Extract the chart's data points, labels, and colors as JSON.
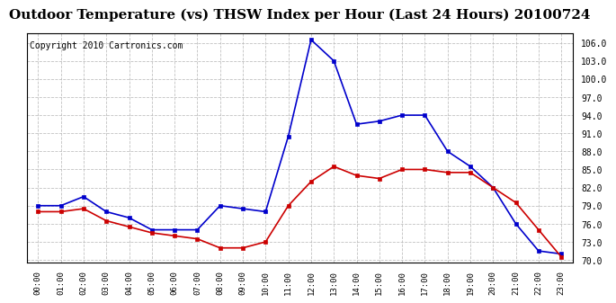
{
  "title": "Outdoor Temperature (vs) THSW Index per Hour (Last 24 Hours) 20100724",
  "copyright": "Copyright 2010 Cartronics.com",
  "hours": [
    "00:00",
    "01:00",
    "02:00",
    "03:00",
    "04:00",
    "05:00",
    "06:00",
    "07:00",
    "08:00",
    "09:00",
    "10:00",
    "11:00",
    "12:00",
    "13:00",
    "14:00",
    "15:00",
    "16:00",
    "17:00",
    "18:00",
    "19:00",
    "20:00",
    "21:00",
    "22:00",
    "23:00"
  ],
  "thsw": [
    79.0,
    79.0,
    80.5,
    78.0,
    77.0,
    75.0,
    75.0,
    75.0,
    79.0,
    78.5,
    78.0,
    90.5,
    106.5,
    103.0,
    92.5,
    93.0,
    94.0,
    94.0,
    88.0,
    85.5,
    82.0,
    76.0,
    71.5,
    71.0
  ],
  "temp": [
    78.0,
    78.0,
    78.5,
    76.5,
    75.5,
    74.5,
    74.0,
    73.5,
    72.0,
    72.0,
    73.0,
    79.0,
    83.0,
    85.5,
    84.0,
    83.5,
    85.0,
    85.0,
    84.5,
    84.5,
    82.0,
    79.5,
    75.0,
    70.5
  ],
  "ylim": [
    69.5,
    107.5
  ],
  "yticks": [
    70.0,
    73.0,
    76.0,
    79.0,
    82.0,
    85.0,
    88.0,
    91.0,
    94.0,
    97.0,
    100.0,
    103.0,
    106.0
  ],
  "thsw_color": "#0000cc",
  "temp_color": "#cc0000",
  "bg_color": "#ffffff",
  "grid_color": "#bbbbbb",
  "title_fontsize": 11,
  "copyright_fontsize": 7
}
